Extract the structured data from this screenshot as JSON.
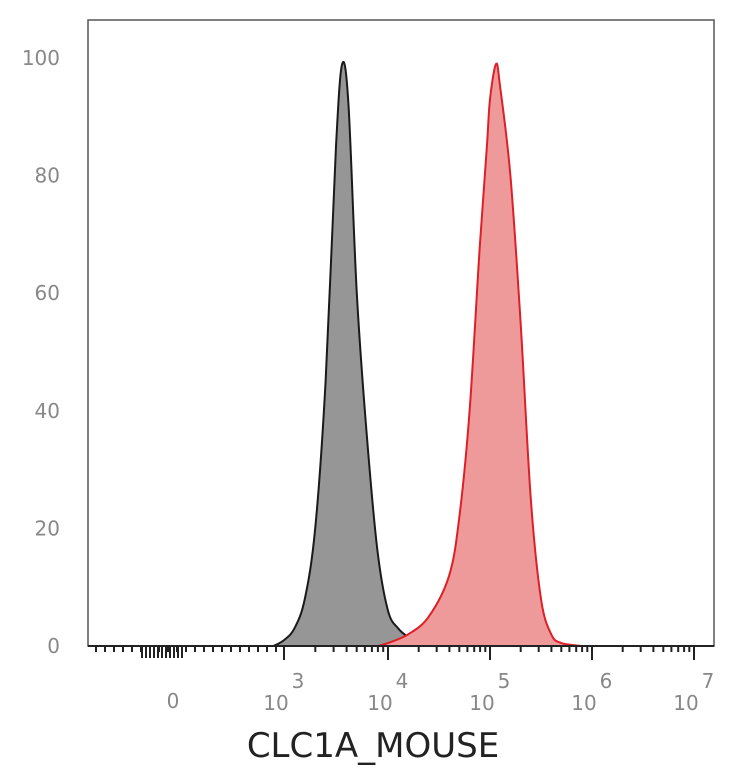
{
  "chart_data": {
    "type": "area",
    "title": "",
    "xlabel": "CLC1A_MOUSE",
    "ylabel": "",
    "xscale": "biexponential (log decades)",
    "ylim": [
      0,
      100
    ],
    "yticks": [
      "0",
      "20",
      "40",
      "60",
      "80",
      "100"
    ],
    "xticks": [
      {
        "text": "0",
        "base": "",
        "exp": ""
      },
      {
        "text": "",
        "base": "10",
        "exp": "3"
      },
      {
        "text": "",
        "base": "10",
        "exp": "4"
      },
      {
        "text": "",
        "base": "10",
        "exp": "5"
      },
      {
        "text": "",
        "base": "10",
        "exp": "6"
      },
      {
        "text": "",
        "base": "10",
        "exp": "7"
      }
    ],
    "grid": false,
    "series": [
      {
        "color_fill": "#969696",
        "color_line": "#1a1a1a",
        "points": [
          [
            2.9,
            0
          ],
          [
            3.0,
            1
          ],
          [
            3.1,
            3
          ],
          [
            3.2,
            8
          ],
          [
            3.3,
            20
          ],
          [
            3.4,
            45
          ],
          [
            3.5,
            85
          ],
          [
            3.56,
            99
          ],
          [
            3.62,
            92
          ],
          [
            3.7,
            60
          ],
          [
            3.8,
            35
          ],
          [
            3.9,
            16
          ],
          [
            4.0,
            6
          ],
          [
            4.1,
            3
          ],
          [
            4.2,
            1.5
          ],
          [
            4.3,
            0.5
          ],
          [
            4.5,
            0
          ]
        ]
      },
      {
        "color_fill": "#ef9a9a",
        "color_line": "#dd1f26",
        "points": [
          [
            3.9,
            0
          ],
          [
            4.0,
            0.5
          ],
          [
            4.2,
            2
          ],
          [
            4.4,
            5
          ],
          [
            4.6,
            12
          ],
          [
            4.7,
            22
          ],
          [
            4.8,
            40
          ],
          [
            4.9,
            68
          ],
          [
            4.97,
            85
          ],
          [
            5.0,
            93
          ],
          [
            5.06,
            99
          ],
          [
            5.1,
            95
          ],
          [
            5.2,
            80
          ],
          [
            5.3,
            55
          ],
          [
            5.4,
            25
          ],
          [
            5.5,
            8
          ],
          [
            5.6,
            2
          ],
          [
            5.7,
            0.5
          ],
          [
            5.9,
            0
          ]
        ]
      }
    ]
  }
}
